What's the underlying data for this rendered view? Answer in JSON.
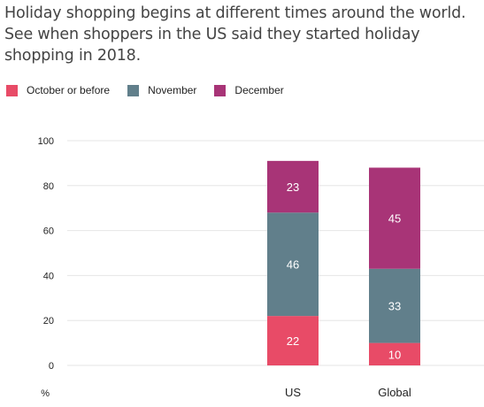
{
  "chart_data": {
    "type": "bar",
    "stacked": true,
    "title": "Holiday shopping begins at different times around the world. See when shoppers in the US said they started holiday shopping in 2018.",
    "ylabel": "%",
    "ylim": [
      0,
      100
    ],
    "yticks": [
      0,
      20,
      40,
      60,
      80,
      100
    ],
    "grid": true,
    "legend_position": "top-left",
    "categories": [
      "US",
      "Global"
    ],
    "series": [
      {
        "name": "October or before",
        "color": "#e84b67",
        "values": [
          22,
          10
        ]
      },
      {
        "name": "November",
        "color": "#617f8b",
        "values": [
          46,
          33
        ]
      },
      {
        "name": "December",
        "color": "#a83477",
        "values": [
          23,
          45
        ]
      }
    ]
  }
}
